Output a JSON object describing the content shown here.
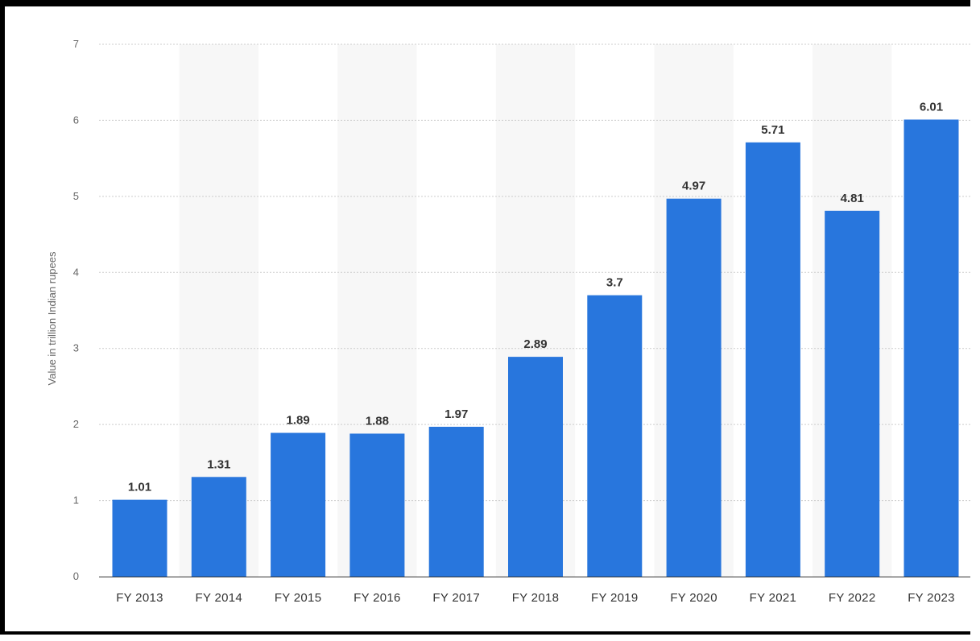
{
  "chart_data": {
    "type": "bar",
    "title": "",
    "xlabel": "",
    "ylabel": "Value in trillion Indian rupees",
    "ylim": [
      0,
      7
    ],
    "yticks": [
      0,
      1,
      2,
      3,
      4,
      5,
      6,
      7
    ],
    "grid": true,
    "legend": "none",
    "categories": [
      "FY 2013",
      "FY 2014",
      "FY 2015",
      "FY 2016",
      "FY 2017",
      "FY 2018",
      "FY 2019",
      "FY 2020",
      "FY 2021",
      "FY 2022",
      "FY 2023"
    ],
    "values": [
      1.01,
      1.31,
      1.89,
      1.88,
      1.97,
      2.89,
      3.7,
      4.97,
      5.71,
      4.81,
      6.01
    ],
    "value_labels": [
      "1.01",
      "1.31",
      "1.89",
      "1.88",
      "1.97",
      "2.89",
      "3.7",
      "4.97",
      "5.71",
      "4.81",
      "6.01"
    ],
    "colors": {
      "bar": "#2876dd",
      "band": "#f7f7f7",
      "grid": "#cccccc",
      "baseline": "#333333"
    }
  }
}
